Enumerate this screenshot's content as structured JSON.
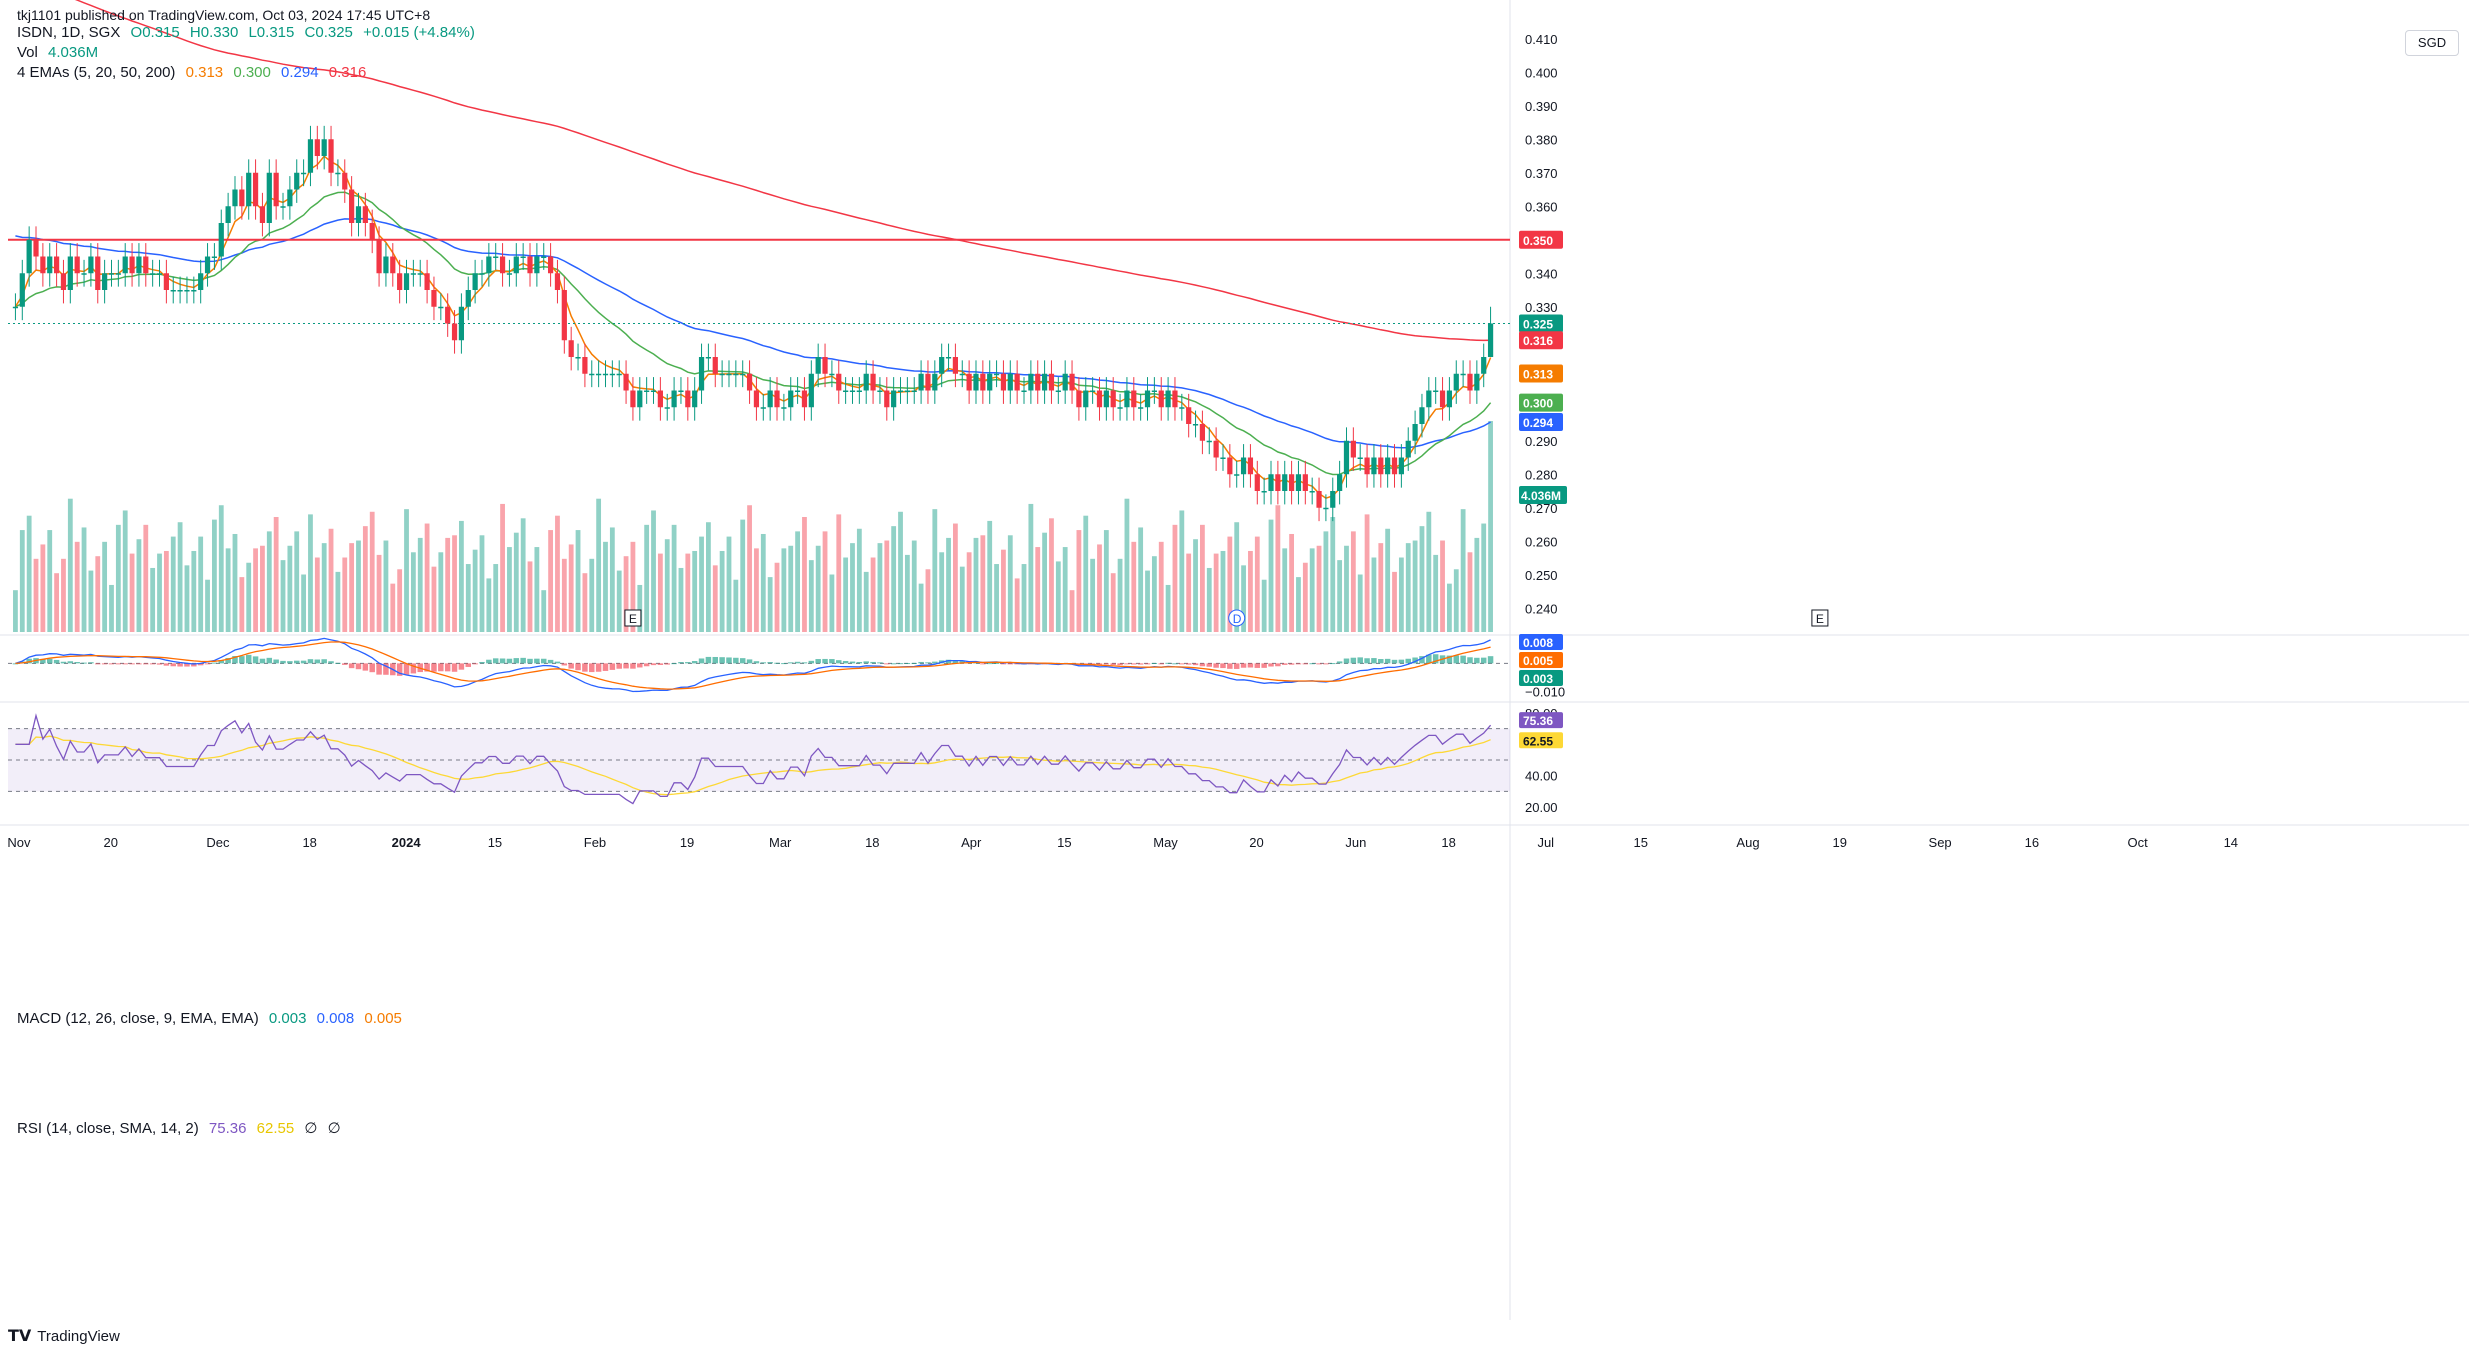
{
  "header": {
    "publisher": "tkj1101 published on TradingView.com, Oct 03, 2024 17:45 UTC+8",
    "symbol": "ISDN, 1D, SGX",
    "ohlc": {
      "open": "O0.315",
      "high": "H0.330",
      "low": "L0.315",
      "close": "C0.325",
      "change": "+0.015 (+4.84%)"
    },
    "vol_label": "Vol",
    "vol_value": "4.036M",
    "ema_label": "4 EMAs (5, 20, 50, 200)",
    "ema_values": [
      "0.313",
      "0.300",
      "0.294",
      "0.316"
    ],
    "macd_label": "MACD (12, 26, close, 9, EMA, EMA)",
    "macd_values": [
      "0.003",
      "0.008",
      "0.005"
    ],
    "rsi_label": "RSI (14, close, SMA, 14, 2)",
    "rsi_values": [
      "75.36",
      "62.55",
      "∅",
      "∅"
    ]
  },
  "currency": "SGD",
  "footer": {
    "logo": "𝗧𝗩",
    "brand": "TradingView"
  },
  "colors": {
    "up": "#089981",
    "down": "#f23645",
    "ema5": "#f57c00",
    "ema20": "#4caf50",
    "ema50": "#2962ff",
    "ema200": "#f23645",
    "macd_line": "#2962ff",
    "signal_line": "#ff6d00",
    "rsi": "#7e57c2",
    "rsi_ma": "#fdd835",
    "hline": "#f23645"
  },
  "chart_data": {
    "type": "candlestick",
    "price_axis": {
      "min": 0.235,
      "max": 0.415,
      "ticks": [
        "0.410",
        "0.400",
        "0.390",
        "0.380",
        "0.370",
        "0.360",
        "0.340",
        "0.330",
        "0.320",
        "0.310",
        "0.290",
        "0.280",
        "0.270",
        "0.260",
        "0.250",
        "0.240"
      ]
    },
    "x_labels": [
      "Nov",
      "20",
      "Dec",
      "18",
      "2024",
      "15",
      "Feb",
      "19",
      "Mar",
      "18",
      "Apr",
      "15",
      "May",
      "20",
      "Jun",
      "18",
      "Jul",
      "15",
      "Aug",
      "19",
      "Sep",
      "16",
      "Oct",
      "14"
    ],
    "x_label_bars": [
      0,
      14,
      29,
      43,
      56,
      70,
      84,
      98,
      111,
      125,
      139,
      153,
      167,
      181,
      195,
      209,
      223,
      237,
      252,
      266,
      280,
      294,
      309,
      323
    ],
    "candles": {
      "start_date": "2023-10-31",
      "open": [
        0.33,
        0.33,
        0.34,
        0.35,
        0.345,
        0.34,
        0.345,
        0.34,
        0.335,
        0.345,
        0.34,
        0.34,
        0.345,
        0.335,
        0.34,
        0.34,
        0.34,
        0.345,
        0.34,
        0.345,
        0.34,
        0.34,
        0.34,
        0.335,
        0.335,
        0.335,
        0.335,
        0.335,
        0.34,
        0.345,
        0.345,
        0.355,
        0.36,
        0.365,
        0.36,
        0.37,
        0.36,
        0.355,
        0.37,
        0.36,
        0.36,
        0.365,
        0.37,
        0.37,
        0.38,
        0.375,
        0.38,
        0.37,
        0.37,
        0.365,
        0.355,
        0.36,
        0.355,
        0.35,
        0.34,
        0.345,
        0.34,
        0.335,
        0.34,
        0.34,
        0.34,
        0.335,
        0.33,
        0.33,
        0.325,
        0.32,
        0.33,
        0.335,
        0.34,
        0.34,
        0.345,
        0.345,
        0.34,
        0.34,
        0.345,
        0.345,
        0.34,
        0.345,
        0.345,
        0.34,
        0.335,
        0.32,
        0.315,
        0.315,
        0.31,
        0.31,
        0.31,
        0.31,
        0.31,
        0.31,
        0.305,
        0.3,
        0.305,
        0.305,
        0.305,
        0.3,
        0.3,
        0.305,
        0.305,
        0.3,
        0.305,
        0.315,
        0.315,
        0.31,
        0.31,
        0.31,
        0.31,
        0.31,
        0.305,
        0.3,
        0.3,
        0.305,
        0.3,
        0.3,
        0.305,
        0.305,
        0.3,
        0.31,
        0.315,
        0.31,
        0.31,
        0.305,
        0.305,
        0.305,
        0.305,
        0.31,
        0.305,
        0.305,
        0.3,
        0.305,
        0.305,
        0.305,
        0.305,
        0.31,
        0.305,
        0.31,
        0.315,
        0.315,
        0.31,
        0.31,
        0.305,
        0.31,
        0.305,
        0.31,
        0.31,
        0.305,
        0.31,
        0.305,
        0.305,
        0.31,
        0.305,
        0.31,
        0.305,
        0.305,
        0.31,
        0.305,
        0.3,
        0.305,
        0.305,
        0.3,
        0.305,
        0.3,
        0.3,
        0.305,
        0.3,
        0.3,
        0.305,
        0.305,
        0.3,
        0.305,
        0.3,
        0.3,
        0.295,
        0.295,
        0.29,
        0.29,
        0.285,
        0.285,
        0.28,
        0.28,
        0.285,
        0.28,
        0.275,
        0.275,
        0.28,
        0.275,
        0.28,
        0.275,
        0.28,
        0.275,
        0.275,
        0.27,
        0.27,
        0.275,
        0.28,
        0.29,
        0.285,
        0.285,
        0.28,
        0.285,
        0.28,
        0.285,
        0.28,
        0.285,
        0.29,
        0.295,
        0.3,
        0.305,
        0.305,
        0.3,
        0.305,
        0.31,
        0.31,
        0.305,
        0.31,
        0.315
      ],
      "close": [
        0.33,
        0.34,
        0.35,
        0.345,
        0.34,
        0.345,
        0.34,
        0.335,
        0.345,
        0.34,
        0.34,
        0.345,
        0.335,
        0.34,
        0.34,
        0.34,
        0.345,
        0.34,
        0.345,
        0.34,
        0.34,
        0.34,
        0.335,
        0.335,
        0.335,
        0.335,
        0.335,
        0.34,
        0.345,
        0.345,
        0.355,
        0.36,
        0.365,
        0.36,
        0.37,
        0.36,
        0.355,
        0.37,
        0.36,
        0.36,
        0.365,
        0.37,
        0.37,
        0.38,
        0.375,
        0.38,
        0.37,
        0.37,
        0.365,
        0.355,
        0.36,
        0.355,
        0.35,
        0.34,
        0.345,
        0.34,
        0.335,
        0.34,
        0.34,
        0.34,
        0.335,
        0.33,
        0.33,
        0.325,
        0.32,
        0.33,
        0.335,
        0.34,
        0.34,
        0.345,
        0.345,
        0.34,
        0.34,
        0.345,
        0.345,
        0.34,
        0.345,
        0.345,
        0.34,
        0.335,
        0.32,
        0.315,
        0.315,
        0.31,
        0.31,
        0.31,
        0.31,
        0.31,
        0.31,
        0.305,
        0.3,
        0.305,
        0.305,
        0.305,
        0.3,
        0.3,
        0.305,
        0.305,
        0.3,
        0.305,
        0.315,
        0.315,
        0.31,
        0.31,
        0.31,
        0.31,
        0.31,
        0.305,
        0.3,
        0.3,
        0.305,
        0.3,
        0.3,
        0.305,
        0.305,
        0.3,
        0.31,
        0.315,
        0.31,
        0.31,
        0.305,
        0.305,
        0.305,
        0.305,
        0.31,
        0.305,
        0.305,
        0.3,
        0.305,
        0.305,
        0.305,
        0.305,
        0.31,
        0.305,
        0.31,
        0.315,
        0.315,
        0.31,
        0.31,
        0.305,
        0.31,
        0.305,
        0.31,
        0.31,
        0.305,
        0.31,
        0.305,
        0.305,
        0.31,
        0.305,
        0.31,
        0.305,
        0.305,
        0.31,
        0.305,
        0.3,
        0.305,
        0.305,
        0.3,
        0.305,
        0.3,
        0.3,
        0.305,
        0.3,
        0.3,
        0.305,
        0.305,
        0.3,
        0.305,
        0.3,
        0.3,
        0.295,
        0.295,
        0.29,
        0.29,
        0.285,
        0.285,
        0.28,
        0.28,
        0.285,
        0.28,
        0.275,
        0.275,
        0.28,
        0.275,
        0.28,
        0.275,
        0.28,
        0.275,
        0.275,
        0.27,
        0.27,
        0.275,
        0.28,
        0.29,
        0.285,
        0.285,
        0.28,
        0.285,
        0.28,
        0.285,
        0.28,
        0.285,
        0.29,
        0.295,
        0.3,
        0.305,
        0.305,
        0.3,
        0.305,
        0.31,
        0.31,
        0.305,
        0.31,
        0.315,
        0.325
      ],
      "high_ext": 0.004,
      "low_ext": 0.004,
      "last": {
        "open": 0.315,
        "high": 0.33,
        "low": 0.315,
        "close": 0.325
      }
    },
    "ema_labels": [
      "0.313",
      "0.300",
      "0.294",
      "0.316"
    ],
    "last_price_label": "0.325",
    "horizontal_line": {
      "value": 0.35,
      "label": "0.350"
    },
    "volume": {
      "last_label": "4.036M",
      "last_value": 4.036,
      "unit": "M"
    },
    "event_markers": [
      "E",
      "D",
      "E"
    ],
    "macd": {
      "axis_ticks": [
        "−0.010"
      ],
      "labels": [
        "0.008",
        "0.005",
        "0.003"
      ],
      "ylim": [
        -0.013,
        0.009
      ]
    },
    "rsi": {
      "axis_ticks": [
        "80.00",
        "40.00",
        "20.00"
      ],
      "labels": [
        "75.36",
        "62.55"
      ],
      "upper": 70,
      "middle": 50,
      "lower": 30,
      "ylim": [
        15,
        85
      ]
    }
  }
}
